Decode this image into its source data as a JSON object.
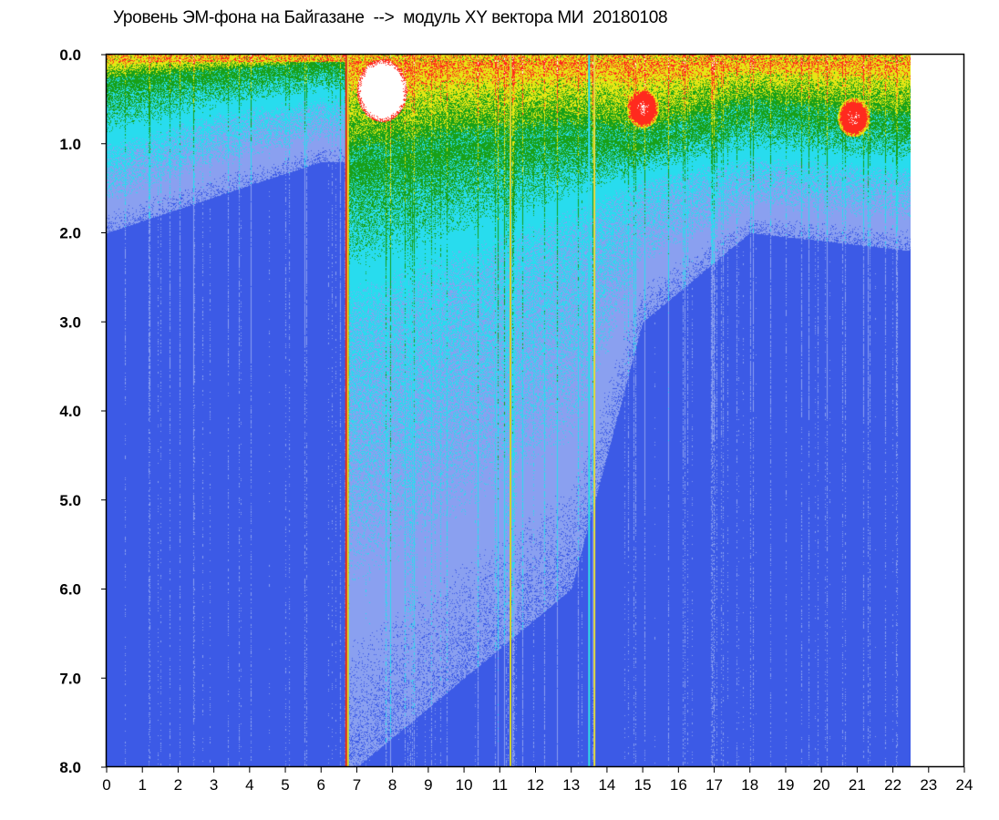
{
  "title": "Уровень ЭМ-фона на Байгазане  -->  модуль XY вектора МИ  20180108",
  "chart_data": {
    "type": "heatmap",
    "title": "Уровень ЭМ-фона на Байгазане  -->  модуль XY вектора МИ  20180108",
    "xlabel": "",
    "ylabel": "",
    "x_range": [
      0,
      24
    ],
    "y_range": [
      0.0,
      8.0
    ],
    "y_inverted": true,
    "data_x_extent": [
      0,
      22.5
    ],
    "x_ticks": [
      "0",
      "1",
      "2",
      "3",
      "4",
      "5",
      "6",
      "7",
      "8",
      "9",
      "10",
      "11",
      "12",
      "13",
      "14",
      "15",
      "16",
      "17",
      "18",
      "19",
      "20",
      "21",
      "22",
      "23",
      "24"
    ],
    "y_ticks": [
      "0.0",
      "1.0",
      "2.0",
      "3.0",
      "4.0",
      "5.0",
      "6.0",
      "7.0",
      "8.0"
    ],
    "grid": false,
    "legend": "none",
    "colormap": [
      "#0a14d2",
      "#3c5ae6",
      "#8aa0f0",
      "#28dcee",
      "#18a018",
      "#e6e614",
      "#ff2a1e",
      "#ffffff"
    ],
    "hour_profiles": [
      {
        "hour": 0,
        "active_top": 0.3,
        "cyan_to": 1.2,
        "light_to": 2.0
      },
      {
        "hour": 3,
        "active_top": 0.2,
        "cyan_to": 0.8,
        "light_to": 1.6
      },
      {
        "hour": 6,
        "active_top": 0.1,
        "cyan_to": 0.6,
        "light_to": 1.2
      },
      {
        "hour": 7,
        "active_top": 1.2,
        "cyan_to": 3.0,
        "light_to": 8.0
      },
      {
        "hour": 10,
        "active_top": 1.0,
        "cyan_to": 2.5,
        "light_to": 7.0
      },
      {
        "hour": 13,
        "active_top": 0.9,
        "cyan_to": 2.0,
        "light_to": 6.0
      },
      {
        "hour": 15,
        "active_top": 1.0,
        "cyan_to": 1.5,
        "light_to": 3.0
      },
      {
        "hour": 18,
        "active_top": 0.6,
        "cyan_to": 1.3,
        "light_to": 2.0
      },
      {
        "hour": 22.5,
        "active_top": 0.8,
        "cyan_to": 1.4,
        "light_to": 2.2
      }
    ],
    "hotspots": [
      {
        "x": 7.7,
        "y": 0.4,
        "level": "saturated"
      },
      {
        "x": 15.0,
        "y": 0.6,
        "level": "high"
      },
      {
        "x": 20.9,
        "y": 0.7,
        "level": "high"
      }
    ],
    "vertical_lines": [
      {
        "x": 6.75,
        "color": "#e6d21e"
      },
      {
        "x": 6.7,
        "color": "#e03020"
      },
      {
        "x": 11.3,
        "color": "#d0d030"
      },
      {
        "x": 13.65,
        "color": "#e0d840"
      },
      {
        "x": 13.5,
        "color": "#30d8e8"
      }
    ]
  }
}
